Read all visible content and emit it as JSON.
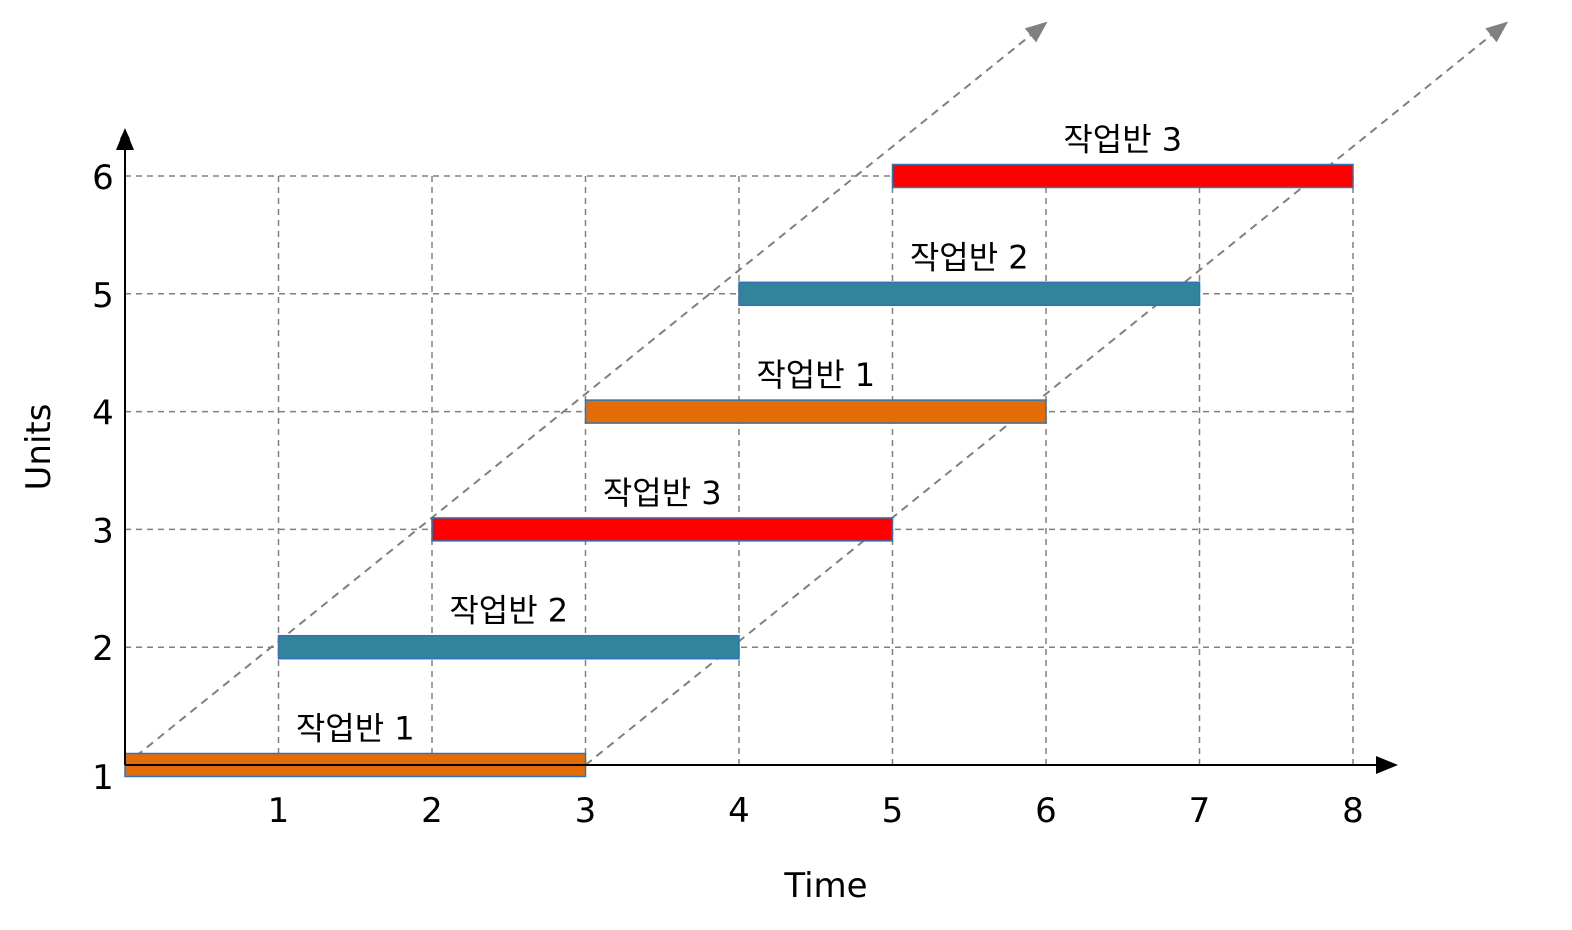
{
  "chart_data": {
    "type": "gantt",
    "title": "",
    "xlabel": "Time",
    "ylabel": "Units",
    "x_ticks": [
      1,
      2,
      3,
      4,
      5,
      6,
      7,
      8
    ],
    "y_ticks": [
      1,
      2,
      3,
      4,
      5,
      6
    ],
    "xlim": [
      0,
      8
    ],
    "ylim": [
      1,
      6
    ],
    "grid": true,
    "legend": "none",
    "colors": {
      "작업반 1": "#e36c09",
      "작업반 2": "#31849b",
      "작업반 3": "#ff0000",
      "bar_border": "#2e75b6",
      "guide_lines": "#808080"
    },
    "bars": [
      {
        "unit": 1,
        "start": 0,
        "end": 3,
        "label": "작업반 1"
      },
      {
        "unit": 2,
        "start": 1,
        "end": 4,
        "label": "작업반 2"
      },
      {
        "unit": 3,
        "start": 2,
        "end": 5,
        "label": "작업반 3"
      },
      {
        "unit": 4,
        "start": 3,
        "end": 6,
        "label": "작업반 1"
      },
      {
        "unit": 5,
        "start": 4,
        "end": 7,
        "label": "작업반 2"
      },
      {
        "unit": 6,
        "start": 5,
        "end": 8,
        "label": "작업반 3"
      }
    ],
    "guide_lines": [
      {
        "name": "start-line",
        "from": [
          0,
          1
        ],
        "to": [
          6,
          7.3
        ]
      },
      {
        "name": "finish-line",
        "from": [
          3,
          1
        ],
        "to": [
          9,
          7.3
        ]
      }
    ]
  }
}
